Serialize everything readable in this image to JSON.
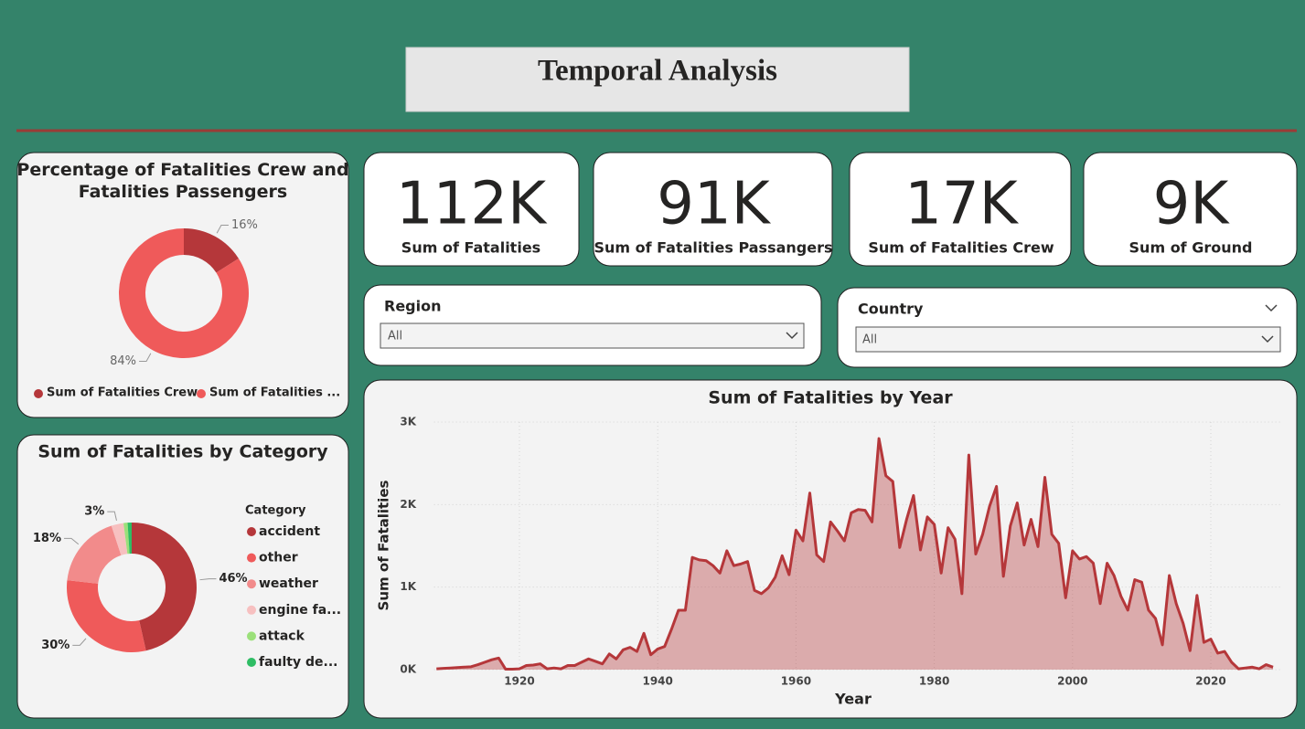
{
  "header": {
    "title": "Temporal Analysis"
  },
  "kpis": [
    {
      "value": "112K",
      "label": "Sum of Fatalities"
    },
    {
      "value": "91K",
      "label": "Sum of Fatalities Passangers"
    },
    {
      "value": "17K",
      "label": "Sum of Fatalities Crew"
    },
    {
      "value": "9K",
      "label": "Sum of Ground"
    }
  ],
  "slicers": [
    {
      "label": "Region",
      "value": "All"
    },
    {
      "label": "Country",
      "value": "All"
    }
  ],
  "chart_data": [
    {
      "type": "donut",
      "title": "Percentage of Fatalities Crew and Fatalities Passengers",
      "categories": [
        "Sum of Fatalities Crew",
        "Sum of Fatalities ..."
      ],
      "values": [
        16,
        84
      ],
      "value_labels": [
        "16%",
        "84%"
      ],
      "colors": [
        "#b5373a",
        "#ef5a5a"
      ],
      "legend": "bottom"
    },
    {
      "type": "donut",
      "title": "Sum of Fatalities by Category",
      "legend_title": "Category",
      "categories": [
        "accident",
        "other",
        "weather",
        "engine fa...",
        "attack",
        "faulty de..."
      ],
      "values": [
        46,
        30,
        18,
        3,
        1,
        1
      ],
      "value_labels": [
        "46%",
        "30%",
        "18%",
        "3%",
        null,
        null
      ],
      "colors": [
        "#b5373a",
        "#ef5a5a",
        "#f28b8b",
        "#f7c0c0",
        "#9be07a",
        "#2ebd64"
      ],
      "legend": "right"
    },
    {
      "type": "area",
      "title": "Sum of Fatalities by Year",
      "x_label": "Year",
      "y_label": "Sum of Fatalities",
      "color": "#b5373a",
      "grid": true,
      "xlim": [
        1905,
        2030
      ],
      "xticks": [
        1920,
        1940,
        1960,
        1980,
        2000,
        2020
      ],
      "ylim": [
        0,
        3000
      ],
      "yticks": [
        {
          "value": 0,
          "label": "0K"
        },
        {
          "value": 1000,
          "label": "1K"
        },
        {
          "value": 2000,
          "label": "2K"
        },
        {
          "value": 3000,
          "label": "3K"
        }
      ],
      "x": [
        1908,
        1909,
        1910,
        1911,
        1912,
        1913,
        1914,
        1915,
        1916,
        1917,
        1918,
        1919,
        1920,
        1921,
        1922,
        1923,
        1924,
        1925,
        1926,
        1927,
        1928,
        1929,
        1930,
        1931,
        1932,
        1933,
        1934,
        1935,
        1936,
        1937,
        1938,
        1939,
        1940,
        1941,
        1942,
        1943,
        1944,
        1945,
        1946,
        1947,
        1948,
        1949,
        1950,
        1951,
        1952,
        1953,
        1954,
        1955,
        1956,
        1957,
        1958,
        1959,
        1960,
        1961,
        1962,
        1963,
        1964,
        1965,
        1966,
        1967,
        1968,
        1969,
        1970,
        1971,
        1972,
        1973,
        1974,
        1975,
        1976,
        1977,
        1978,
        1979,
        1980,
        1981,
        1982,
        1983,
        1984,
        1985,
        1986,
        1987,
        1988,
        1989,
        1990,
        1991,
        1992,
        1993,
        1994,
        1995,
        1996,
        1997,
        1998,
        1999,
        2000,
        2001,
        2002,
        2003,
        2004,
        2005,
        2006,
        2007,
        2008,
        2009,
        2010,
        2011,
        2012,
        2013,
        2014,
        2015,
        2016,
        2017,
        2018,
        2019,
        2020,
        2021,
        2022,
        2023,
        2024,
        2025,
        2026,
        2027,
        2028,
        2029
      ],
      "values": [
        10,
        15,
        20,
        25,
        30,
        35,
        60,
        90,
        120,
        140,
        5,
        5,
        10,
        50,
        55,
        70,
        10,
        20,
        10,
        50,
        50,
        90,
        130,
        100,
        70,
        190,
        130,
        240,
        270,
        220,
        440,
        180,
        250,
        280,
        490,
        720,
        720,
        1360,
        1330,
        1320,
        1260,
        1170,
        1440,
        1260,
        1280,
        1310,
        960,
        920,
        990,
        1120,
        1380,
        1150,
        1690,
        1560,
        2140,
        1390,
        1310,
        1790,
        1680,
        1560,
        1900,
        1940,
        1930,
        1790,
        2800,
        2350,
        2280,
        1480,
        1820,
        2110,
        1450,
        1850,
        1760,
        1170,
        1720,
        1580,
        920,
        2600,
        1400,
        1640,
        1980,
        2220,
        1130,
        1740,
        2020,
        1510,
        1820,
        1490,
        2330,
        1640,
        1530,
        870,
        1440,
        1340,
        1370,
        1290,
        800,
        1290,
        1140,
        890,
        720,
        1090,
        1060,
        720,
        620,
        300,
        1140,
        800,
        560,
        230,
        900,
        330,
        370,
        200,
        220,
        90,
        10,
        20,
        30,
        10,
        60,
        30
      ]
    }
  ]
}
